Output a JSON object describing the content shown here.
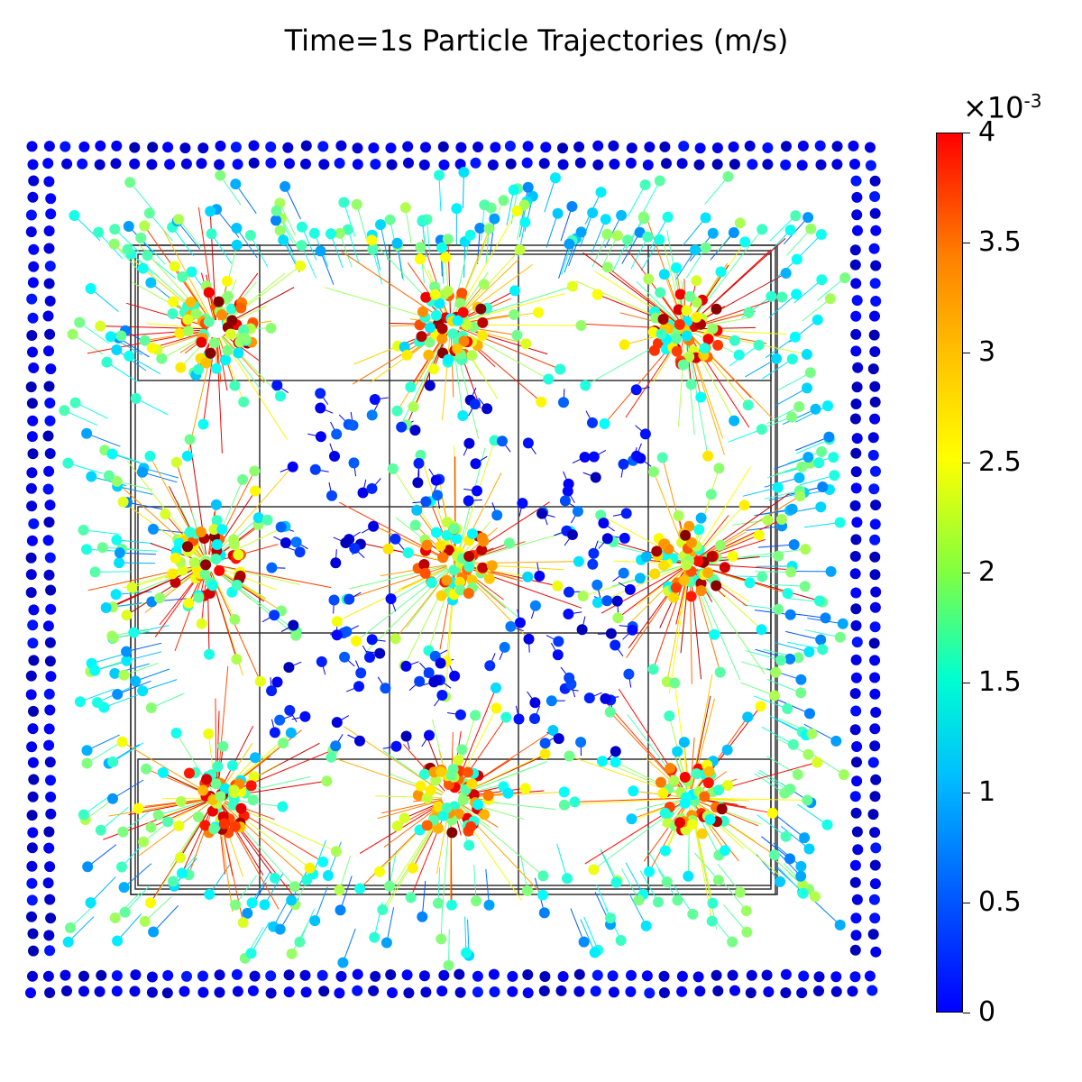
{
  "chart_data": {
    "type": "scatter",
    "title": "Time=1s Particle Trajectories (m/s)",
    "description_quantity": "particle speed",
    "colorbar": {
      "min": 0,
      "max": 0.004,
      "multiplier_label": "×10",
      "multiplier_exponent": "-3",
      "ticks": [
        "4",
        "3.5",
        "3",
        "2.5",
        "2",
        "1.5",
        "1",
        "0.5",
        "0"
      ],
      "colormap": "jet"
    },
    "grid": false,
    "legend_position": "right"
  }
}
